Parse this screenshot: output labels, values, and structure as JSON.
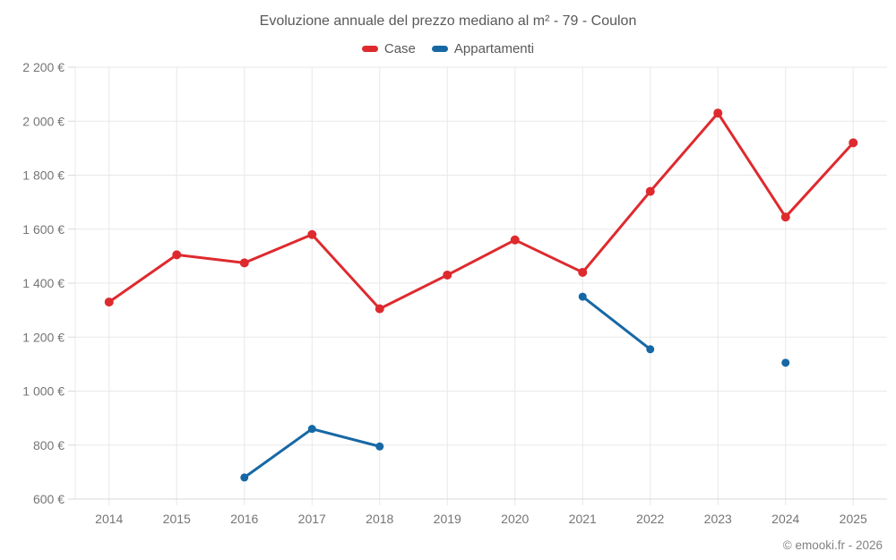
{
  "title": "Evoluzione annuale del prezzo mediano al m² - 79 - Coulon",
  "legend": {
    "items": [
      {
        "label": "Case",
        "color": "#de2a2e"
      },
      {
        "label": "Appartamenti",
        "color": "#1668a5"
      }
    ]
  },
  "copyright": "© emooki.fr - 2026",
  "chart_data": {
    "type": "line",
    "title": "Evoluzione annuale del prezzo mediano al m² - 79 - Coulon",
    "categories": [
      "2014",
      "2015",
      "2016",
      "2017",
      "2018",
      "2019",
      "2020",
      "2021",
      "2022",
      "2023",
      "2024",
      "2025"
    ],
    "series": [
      {
        "name": "Case",
        "color": "#de2a2e",
        "values": [
          1330,
          1505,
          1475,
          1580,
          1305,
          1430,
          1560,
          1440,
          1740,
          2030,
          1645,
          1920
        ]
      },
      {
        "name": "Appartamenti",
        "color": "#1668a5",
        "values": [
          null,
          null,
          680,
          860,
          795,
          null,
          null,
          1350,
          1155,
          null,
          1105,
          null
        ]
      }
    ],
    "xlabel": "",
    "ylabel": "",
    "ylim": [
      600,
      2200
    ],
    "ytick_step": 200,
    "ytick_labels": [
      "600 €",
      "800 €",
      "1 000 €",
      "1 200 €",
      "1 400 €",
      "1 600 €",
      "1 800 €",
      "2 000 €",
      "2 200 €"
    ],
    "currency_suffix": " €",
    "grid": true,
    "legend_position": "top",
    "gap_handling": "nulls break the line; isolated points drawn as lone markers"
  }
}
